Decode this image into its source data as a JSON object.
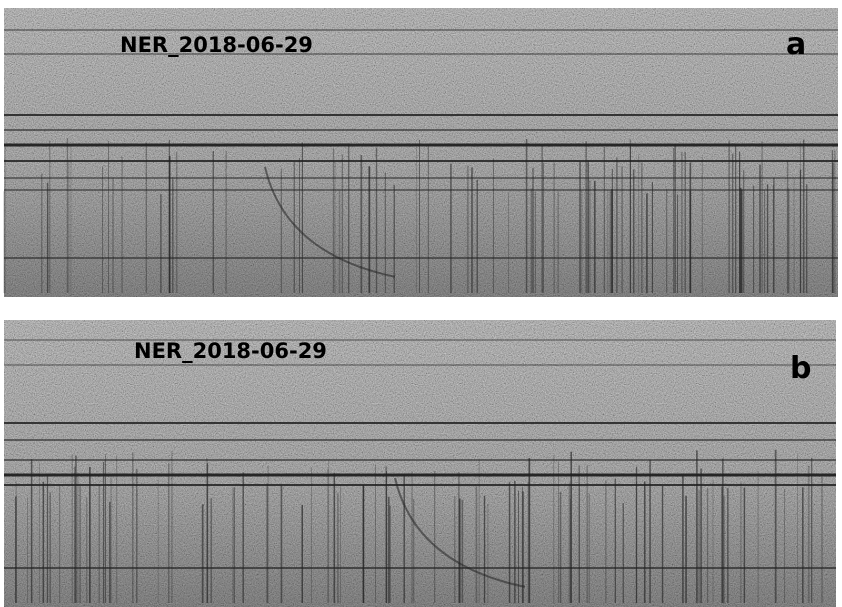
{
  "panels": [
    {
      "station": "NER_2018-06-29",
      "letter": "a"
    },
    {
      "station": "NER_2018-06-29",
      "letter": "b"
    }
  ]
}
